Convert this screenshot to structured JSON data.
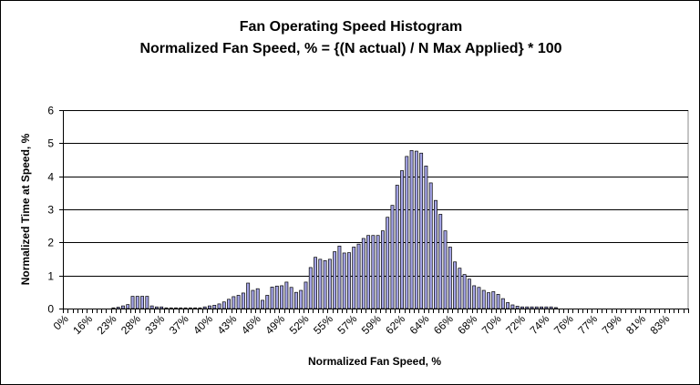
{
  "chart_data": {
    "type": "bar",
    "title": "Fan Operating Speed Histogram",
    "subtitle": "Normalized Fan Speed, % = {(N actual) / N Max Applied} * 100",
    "xlabel": "Normalized Fan Speed, %",
    "ylabel": "Normalized Time at Speed, %",
    "ylim": [
      0,
      6
    ],
    "yticks": [
      "0",
      "1",
      "2",
      "3",
      "4",
      "5",
      "6"
    ],
    "grid": true,
    "legend": "none",
    "bar_color": "#a4a4e6",
    "label_every": 5,
    "tick_labels": [
      "0%",
      "16%",
      "23%",
      "28%",
      "33%",
      "37%",
      "40%",
      "43%",
      "46%",
      "49%",
      "52%",
      "55%",
      "57%",
      "59%",
      "62%",
      "64%",
      "66%",
      "68%",
      "70%",
      "72%",
      "74%",
      "76%",
      "77%",
      "79%",
      "81%",
      "83%"
    ],
    "values": [
      0,
      0,
      0,
      0,
      0,
      0,
      0,
      0,
      0,
      0,
      0.02,
      0.04,
      0.08,
      0.12,
      0.37,
      0.37,
      0.37,
      0.37,
      0.08,
      0.05,
      0.05,
      0.02,
      0.02,
      0.02,
      0.02,
      0.02,
      0.02,
      0.02,
      0.02,
      0.05,
      0.08,
      0.1,
      0.14,
      0.2,
      0.28,
      0.36,
      0.4,
      0.47,
      0.77,
      0.55,
      0.6,
      0.25,
      0.4,
      0.65,
      0.68,
      0.69,
      0.8,
      0.64,
      0.49,
      0.55,
      0.8,
      1.24,
      1.55,
      1.49,
      1.45,
      1.49,
      1.72,
      1.89,
      1.68,
      1.69,
      1.86,
      1.95,
      2.12,
      2.21,
      2.21,
      2.21,
      2.35,
      2.76,
      3.12,
      3.73,
      4.17,
      4.6,
      4.78,
      4.76,
      4.7,
      4.31,
      3.8,
      3.27,
      2.85,
      2.35,
      1.86,
      1.41,
      1.22,
      1.03,
      0.89,
      0.69,
      0.64,
      0.55,
      0.48,
      0.51,
      0.43,
      0.3,
      0.18,
      0.11,
      0.07,
      0.05,
      0.05,
      0.05,
      0.05,
      0.05,
      0.05,
      0.05,
      0.03,
      0,
      0,
      0,
      0,
      0,
      0,
      0,
      0,
      0,
      0,
      0,
      0,
      0,
      0,
      0,
      0,
      0,
      0,
      0,
      0,
      0,
      0,
      0,
      0,
      0,
      0,
      0
    ]
  }
}
